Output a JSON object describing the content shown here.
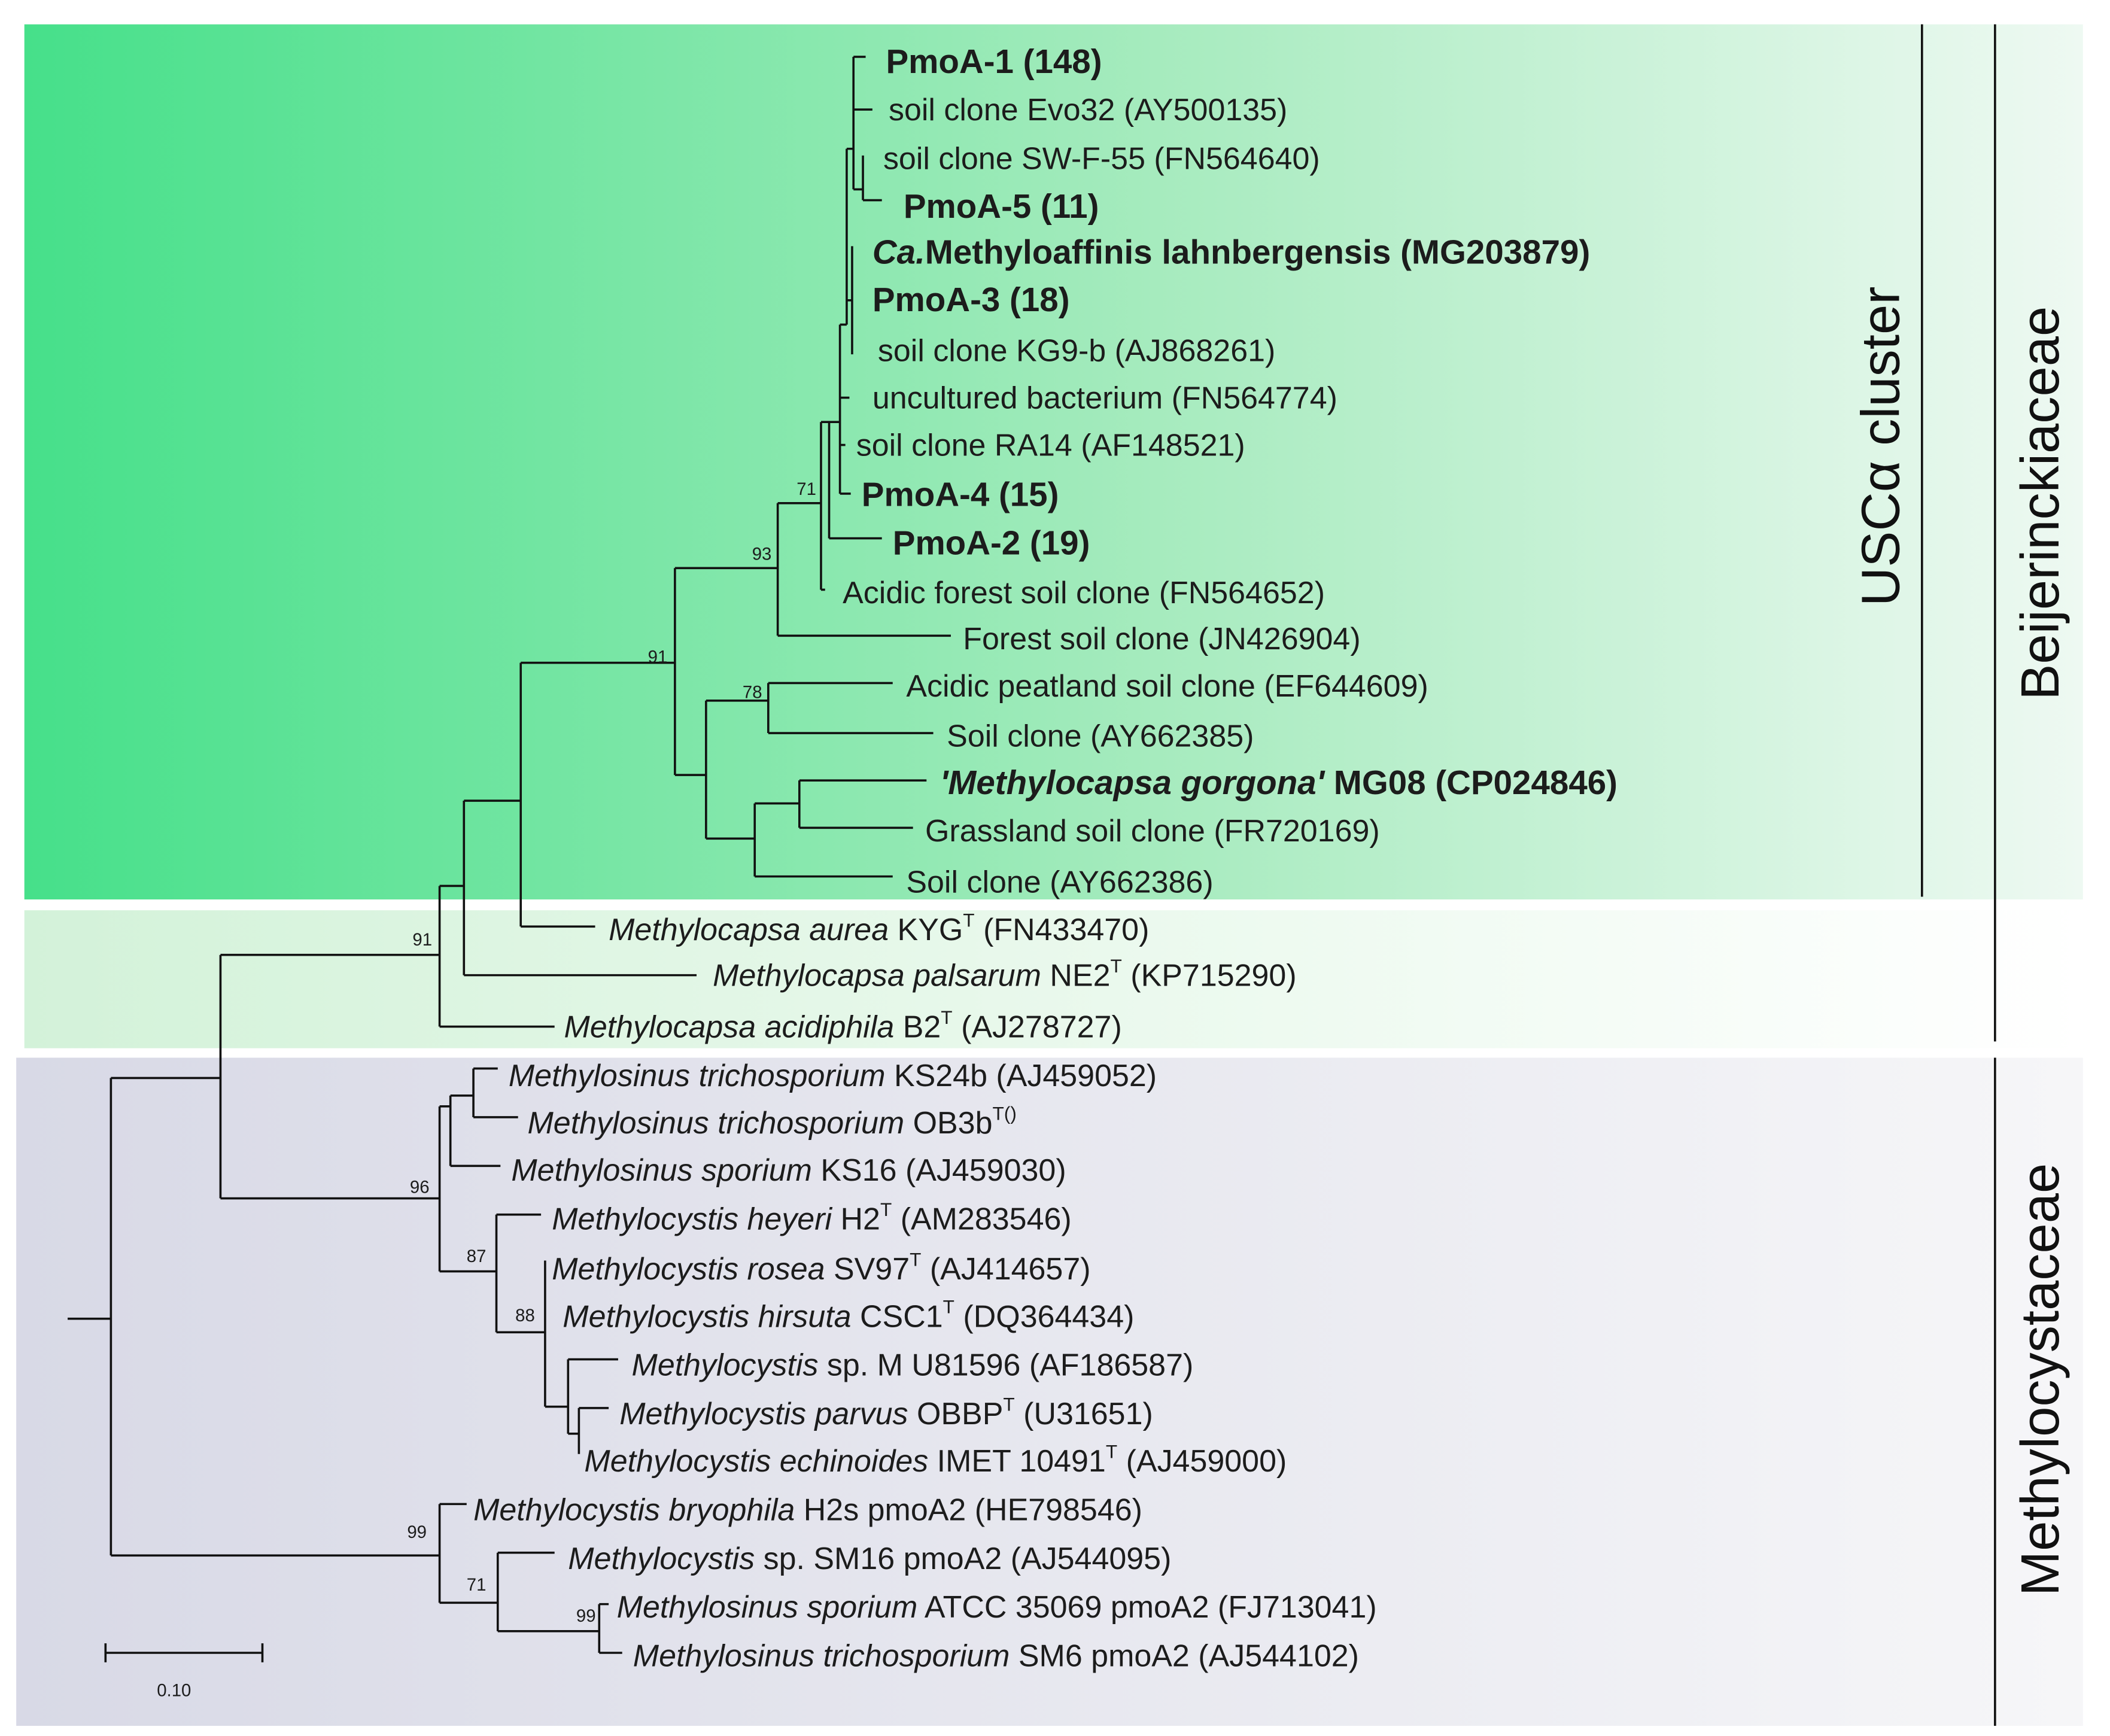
{
  "colors": {
    "uscalpha_band": [
      "#46e08a",
      "#eef9f2"
    ],
    "methylocapsa_band": [
      "#d3f2d9",
      "#ffffff"
    ],
    "methylocystaceae_band": [
      "#d8d9e6",
      "#f6f6f8"
    ],
    "highlight_text": "#123a1e"
  },
  "leaves": [
    {
      "parts": [
        {
          "t": "PmoA-1 (148)",
          "s": "b"
        }
      ]
    },
    {
      "parts": [
        {
          "t": "soil clone Evo32 (AY500135)",
          "s": ""
        }
      ]
    },
    {
      "parts": [
        {
          "t": "soil clone SW-F-55 (FN564640)",
          "s": ""
        }
      ]
    },
    {
      "parts": [
        {
          "t": "PmoA-5 (11)",
          "s": "b"
        }
      ]
    },
    {
      "parts": [
        {
          "t": "Ca.",
          "s": "bi"
        },
        {
          "t": "Methyloaffinis lahnbergensis (MG203879)",
          "s": "b"
        }
      ]
    },
    {
      "parts": [
        {
          "t": "PmoA-3 (18)",
          "s": "b"
        }
      ]
    },
    {
      "parts": [
        {
          "t": "soil clone KG9-b (AJ868261)",
          "s": ""
        }
      ]
    },
    {
      "parts": [
        {
          "t": "uncultured bacterium (FN564774)",
          "s": ""
        }
      ]
    },
    {
      "parts": [
        {
          "t": "soil clone RA14 (AF148521)",
          "s": ""
        }
      ]
    },
    {
      "parts": [
        {
          "t": "PmoA-4 (15)",
          "s": "b"
        }
      ]
    },
    {
      "parts": [
        {
          "t": "PmoA-2 (19)",
          "s": "b"
        }
      ]
    },
    {
      "parts": [
        {
          "t": "Acidic forest soil clone (FN564652)",
          "s": ""
        }
      ]
    },
    {
      "parts": [
        {
          "t": "Forest soil clone (JN426904)",
          "s": ""
        }
      ]
    },
    {
      "parts": [
        {
          "t": "Acidic peatland soil clone (EF644609)",
          "s": ""
        }
      ]
    },
    {
      "parts": [
        {
          "t": "Soil clone (AY662385)",
          "s": ""
        }
      ]
    },
    {
      "parts": [
        {
          "t": "'Methylocapsa gorgona'",
          "s": "bi"
        },
        {
          "t": " MG08 (CP024846)",
          "s": "b"
        }
      ],
      "highlight": true
    },
    {
      "parts": [
        {
          "t": "Grassland soil clone (FR720169)",
          "s": ""
        }
      ]
    },
    {
      "parts": [
        {
          "t": "Soil clone (AY662386)",
          "s": ""
        }
      ]
    },
    {
      "parts": [
        {
          "t": "Methylocapsa aurea",
          "s": "i"
        },
        {
          "t": " KYG",
          "s": ""
        },
        {
          "t": "T",
          "s": "sup"
        },
        {
          "t": " (FN433470)",
          "s": ""
        }
      ]
    },
    {
      "parts": [
        {
          "t": "Methylocapsa palsarum",
          "s": "i"
        },
        {
          "t": " NE2",
          "s": ""
        },
        {
          "t": "T",
          "s": "sup"
        },
        {
          "t": " (KP715290)",
          "s": ""
        }
      ]
    },
    {
      "parts": [
        {
          "t": "Methylocapsa acidiphila",
          "s": "i"
        },
        {
          "t": " B2",
          "s": ""
        },
        {
          "t": "T",
          "s": "sup"
        },
        {
          "t": " (AJ278727)",
          "s": ""
        }
      ]
    },
    {
      "parts": [
        {
          "t": "Methylosinus trichosporium",
          "s": "i"
        },
        {
          "t": " KS24b (AJ459052)",
          "s": ""
        }
      ]
    },
    {
      "parts": [
        {
          "t": "Methylosinus trichosporium",
          "s": "i"
        },
        {
          "t": " OB3b",
          "s": ""
        },
        {
          "t": "T()",
          "s": "sup"
        }
      ]
    },
    {
      "parts": [
        {
          "t": "Methylosinus sporium",
          "s": "i"
        },
        {
          "t": " KS16 (AJ459030)",
          "s": ""
        }
      ]
    },
    {
      "parts": [
        {
          "t": "Methylocystis heyeri",
          "s": "i"
        },
        {
          "t": " H2",
          "s": ""
        },
        {
          "t": "T",
          "s": "sup"
        },
        {
          "t": " (AM283546)",
          "s": ""
        }
      ]
    },
    {
      "parts": [
        {
          "t": "Methylocystis rosea",
          "s": "i"
        },
        {
          "t": " SV97",
          "s": ""
        },
        {
          "t": "T",
          "s": "sup"
        },
        {
          "t": " (AJ414657)",
          "s": ""
        }
      ]
    },
    {
      "parts": [
        {
          "t": "Methylocystis hirsuta",
          "s": "i"
        },
        {
          "t": " CSC1",
          "s": ""
        },
        {
          "t": "T",
          "s": "sup"
        },
        {
          "t": " (DQ364434)",
          "s": ""
        }
      ]
    },
    {
      "parts": [
        {
          "t": "Methylocystis",
          "s": "i"
        },
        {
          "t": " sp. M U81596 (AF186587)",
          "s": ""
        }
      ]
    },
    {
      "parts": [
        {
          "t": "Methylocystis parvus",
          "s": "i"
        },
        {
          "t": " OBBP",
          "s": ""
        },
        {
          "t": "T",
          "s": "sup"
        },
        {
          "t": " (U31651)",
          "s": ""
        }
      ]
    },
    {
      "parts": [
        {
          "t": "Methylocystis echinoides",
          "s": "i"
        },
        {
          "t": " IMET 10491",
          "s": ""
        },
        {
          "t": "T",
          "s": "sup"
        },
        {
          "t": " (AJ459000)",
          "s": ""
        }
      ]
    },
    {
      "parts": [
        {
          "t": "Methylocystis bryophila",
          "s": "i"
        },
        {
          "t": " H2s pmoA2 (HE798546)",
          "s": ""
        }
      ]
    },
    {
      "parts": [
        {
          "t": "Methylocystis",
          "s": "i"
        },
        {
          "t": " sp. SM16 pmoA2 (AJ544095)",
          "s": ""
        }
      ]
    },
    {
      "parts": [
        {
          "t": "Methylosinus sporium",
          "s": "i"
        },
        {
          "t": " ATCC 35069 pmoA2 (FJ713041)",
          "s": ""
        }
      ]
    },
    {
      "parts": [
        {
          "t": "Methylosinus trichosporium",
          "s": "i"
        },
        {
          "t": " SM6 pmoA2 (AJ544102)",
          "s": ""
        }
      ]
    }
  ],
  "bootstrap": [
    "71",
    "93",
    "91",
    "78",
    "91",
    "96",
    "87",
    "88",
    "99",
    "71",
    "99"
  ],
  "scale_bar": {
    "label": "0.10",
    "value": 0.1
  },
  "clades": {
    "uscalpha": "USCα cluster",
    "beijerinckiaceae": "Beijerinckiaceae",
    "methylocystaceae": "Methylocystaceae"
  }
}
